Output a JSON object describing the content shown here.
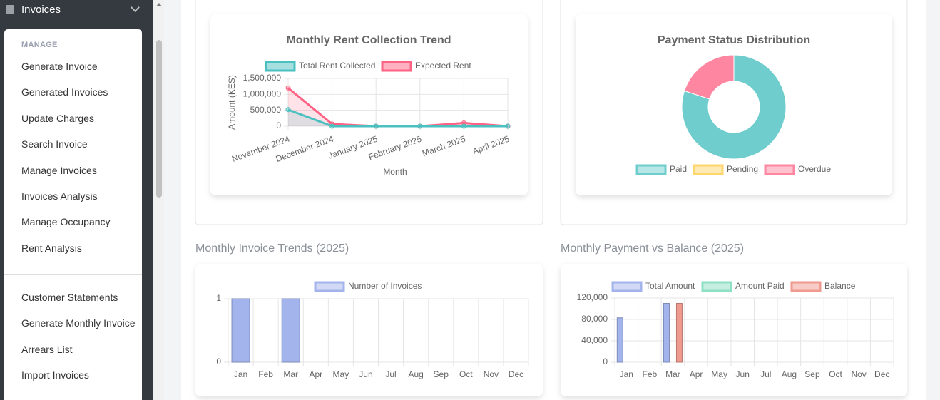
{
  "sidebar": {
    "header": "Invoices",
    "section": "MANAGE",
    "items": [
      "Generate Invoice",
      "Generated Invoices",
      "Update Charges",
      "Search Invoice",
      "Manage Invoices",
      "Invoices Analysis",
      "Manage Occupancy",
      "Rent Analysis"
    ],
    "more_items": [
      "Customer Statements",
      "Generate Monthly Invoice",
      "Arrears List",
      "Import Invoices"
    ]
  },
  "chart_data": [
    {
      "type": "line",
      "title": "Monthly Rent Collection Trend",
      "x_label": "Month",
      "y_label": "Amount (KES)",
      "categories": [
        "November 2024",
        "December 2024",
        "January 2025",
        "February 2025",
        "March 2025",
        "April 2025"
      ],
      "series": [
        {
          "name": "Total Rent Collected",
          "color": "#4bc0c0",
          "values": [
            520000,
            0,
            0,
            0,
            0,
            0
          ]
        },
        {
          "name": "Expected Rent",
          "color": "#ff6384",
          "values": [
            1200000,
            70000,
            0,
            0,
            100000,
            0
          ]
        }
      ],
      "ylim": [
        0,
        1500000
      ],
      "yticks": [
        0,
        {
          "value": 500000,
          "label": "500,000"
        },
        {
          "value": 1000000,
          "label": "1,000,000"
        },
        {
          "value": 1500000,
          "label": "1,500,000"
        }
      ],
      "grid": true
    },
    {
      "type": "doughnut",
      "title": "Payment Status Distribution",
      "categories": [
        "Paid",
        "Pending",
        "Overdue"
      ],
      "values": [
        80,
        0,
        20
      ],
      "colors": [
        "#6fcdcd",
        "#ffd66b",
        "#ff86a0"
      ]
    },
    {
      "type": "bar",
      "title": "Monthly Invoice Trends (2025)",
      "categories": [
        "Jan",
        "Feb",
        "Mar",
        "Apr",
        "May",
        "Jun",
        "Jul",
        "Aug",
        "Sep",
        "Oct",
        "Nov",
        "Dec"
      ],
      "series": [
        {
          "name": "Number of Invoices",
          "color": "#a3b4ec",
          "values": [
            1,
            0,
            1,
            0,
            0,
            0,
            0,
            0,
            0,
            0,
            0,
            0
          ]
        }
      ],
      "ylim": [
        0,
        1
      ],
      "yticks": [
        0,
        1
      ],
      "grid": true
    },
    {
      "type": "bar",
      "title": "Monthly Payment vs Balance (2025)",
      "categories": [
        "Jan",
        "Feb",
        "Mar",
        "Apr",
        "May",
        "Jun",
        "Jul",
        "Aug",
        "Sep",
        "Oct",
        "Nov",
        "Dec"
      ],
      "series": [
        {
          "name": "Total Amount",
          "color": "#a3b4ec",
          "values": [
            83000,
            0,
            110000,
            0,
            0,
            0,
            0,
            0,
            0,
            0,
            0,
            0
          ]
        },
        {
          "name": "Amount Paid",
          "color": "#8ee0c4",
          "values": [
            0,
            0,
            0,
            0,
            0,
            0,
            0,
            0,
            0,
            0,
            0,
            0
          ]
        },
        {
          "name": "Balance",
          "color": "#ef9a8e",
          "values": [
            0,
            0,
            110000,
            0,
            0,
            0,
            0,
            0,
            0,
            0,
            0,
            0
          ]
        }
      ],
      "ylim": [
        0,
        120000
      ],
      "yticks": [
        0,
        {
          "value": 40000,
          "label": "40,000"
        },
        {
          "value": 80000,
          "label": "80,000"
        },
        {
          "value": 120000,
          "label": "120,000"
        }
      ],
      "grid": true
    }
  ]
}
